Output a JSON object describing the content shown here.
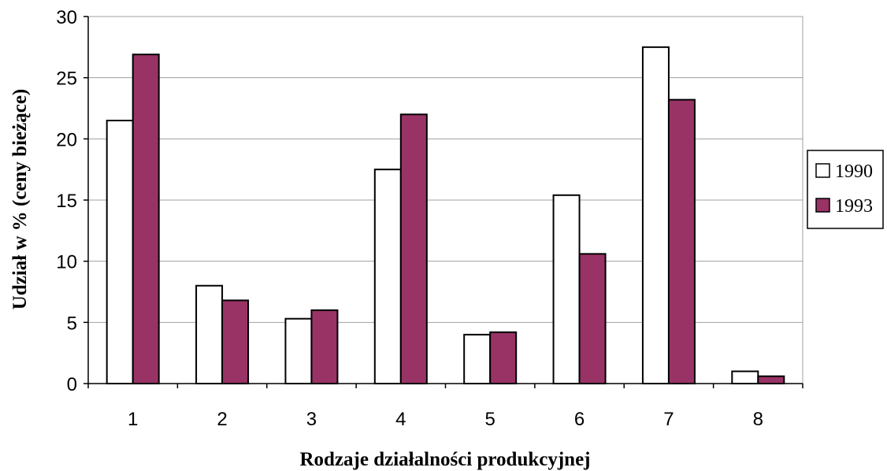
{
  "chart_data": {
    "type": "bar",
    "title": "",
    "xlabel": "Rodzaje działalności produkcyjnej",
    "ylabel": "Udział w % (ceny bieżące)",
    "ylim": [
      0,
      30
    ],
    "yticks": [
      0,
      5,
      10,
      15,
      20,
      25,
      30
    ],
    "categories": [
      "1",
      "2",
      "3",
      "4",
      "5",
      "6",
      "7",
      "8"
    ],
    "series": [
      {
        "name": "1990",
        "color": "#ffffff",
        "values": [
          21.5,
          8.0,
          5.3,
          17.5,
          4.0,
          15.4,
          27.5,
          1.0
        ]
      },
      {
        "name": "1993",
        "color": "#993366",
        "values": [
          26.9,
          6.8,
          6.0,
          22.0,
          4.2,
          10.6,
          23.2,
          0.6
        ]
      }
    ],
    "grid": true,
    "legend_position": "right"
  }
}
